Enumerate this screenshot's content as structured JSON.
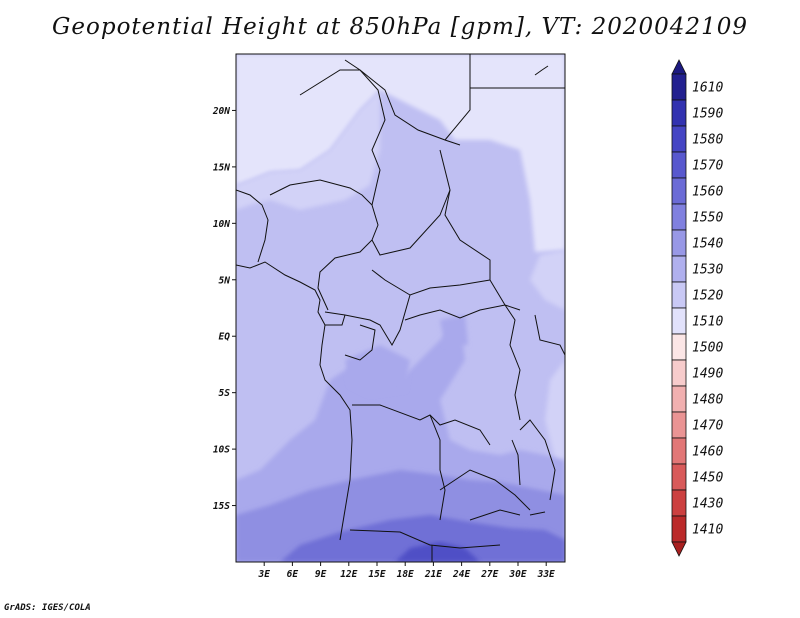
{
  "title": "Geopotential Height at 850hPa [gpm], VT: 2020042109",
  "credit": "GrADS: IGES/COLA",
  "map": {
    "projection": "lat-lon",
    "lon_range": [
      0,
      35
    ],
    "lat_range": [
      -20,
      25
    ],
    "x_ticks": [
      "3E",
      "6E",
      "9E",
      "12E",
      "15E",
      "18E",
      "21E",
      "24E",
      "27E",
      "30E",
      "33E"
    ],
    "y_ticks": [
      "20N",
      "15N",
      "10N",
      "5N",
      "EQ",
      "5S",
      "10S",
      "15S"
    ],
    "field_colors": {
      "1520": "#e4e4fb",
      "1530": "#d2d2f7",
      "1540": "#bfbff2",
      "1550": "#a9a9ec",
      "1560": "#8f8fe2",
      "1570": "#6f6fd6",
      "1580": "#5050c6"
    }
  },
  "legend": {
    "levels": [
      "1610",
      "1590",
      "1580",
      "1570",
      "1560",
      "1550",
      "1540",
      "1530",
      "1520",
      "1510",
      "1500",
      "1490",
      "1480",
      "1470",
      "1460",
      "1450",
      "1430",
      "1410"
    ],
    "colors": [
      "#22208f",
      "#3232b0",
      "#4545c4",
      "#5858ce",
      "#6b6bd6",
      "#8080df",
      "#9898e6",
      "#b0b0ee",
      "#c9c9f5",
      "#e2e2fb",
      "#fbe6e6",
      "#f7cccc",
      "#f1b0b0",
      "#ea9494",
      "#e27777",
      "#d85a5a",
      "#cc4040",
      "#bb2a2a"
    ],
    "top_cap_color": "#1c1a80",
    "bottom_cap_color": "#a82020"
  }
}
